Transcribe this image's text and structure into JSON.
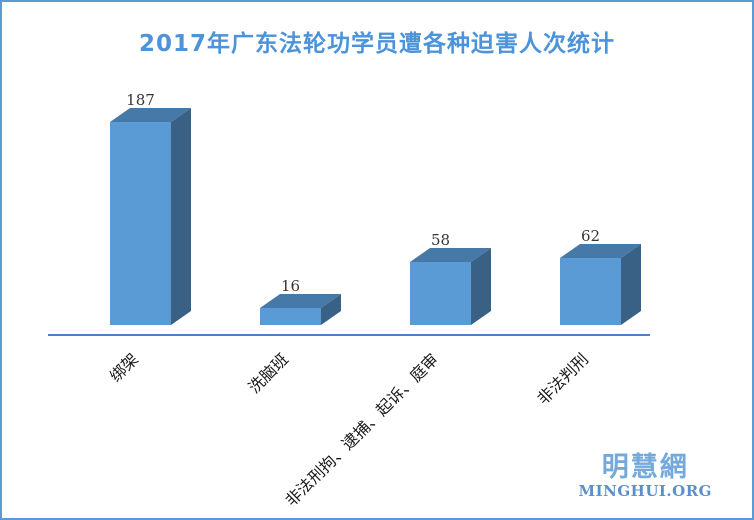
{
  "page": {
    "background_color": "#ffffff",
    "border_color": "#5b9bd5"
  },
  "chart_data": {
    "type": "bar",
    "style": "3d-column",
    "title": "2017年广东法轮功学员遭各种迫害人次统计",
    "categories": [
      "绑架",
      "洗脑班",
      "非法刑拘、逮捕、起诉、庭审",
      "非法判刑"
    ],
    "values": [
      187,
      16,
      58,
      62
    ],
    "xlabel": "",
    "ylabel": "",
    "grid": false,
    "legend": false,
    "data_labels_shown": true,
    "colors": {
      "bar_front": "#5b9bd5",
      "bar_top": "#4779a8",
      "bar_side": "#396186",
      "axis_line": "#4e81c2",
      "value_label": "#363636",
      "category_label": "#1a1a1a",
      "title": "#4d93d9"
    }
  },
  "logo": {
    "chinese": "明慧網",
    "domain": "MINGHUI.ORG",
    "chinese_color": "#74a9dc",
    "domain_color": "#5b8fcc"
  }
}
